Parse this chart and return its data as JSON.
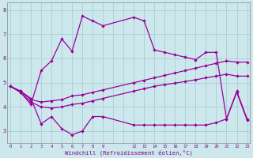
{
  "xlabel": "Windchill (Refroidissement éolien,°C)",
  "background_color": "#cce8ed",
  "grid_color": "#aacdd4",
  "line_color": "#990099",
  "yticks": [
    3,
    4,
    5,
    6,
    7,
    8
  ],
  "xtick_labels": [
    "0",
    "1",
    "2",
    "3",
    "4",
    "5",
    "6",
    "7",
    "8",
    "9",
    "",
    "",
    "12",
    "13",
    "14",
    "15",
    "16",
    "17",
    "18",
    "19",
    "20",
    "21",
    "22",
    "23"
  ],
  "xtick_positions": [
    0,
    1,
    2,
    3,
    4,
    5,
    6,
    7,
    8,
    9,
    10,
    11,
    12,
    13,
    14,
    15,
    16,
    17,
    18,
    19,
    20,
    21,
    22,
    23
  ],
  "ylim": [
    2.5,
    8.3
  ],
  "xlim": [
    -0.3,
    23.3
  ],
  "s1_x": [
    0,
    1,
    2,
    3,
    4,
    5,
    6,
    7,
    8,
    9,
    12,
    13,
    14,
    15,
    16,
    17,
    18,
    19,
    20,
    21,
    22,
    23
  ],
  "s1_y": [
    4.85,
    4.65,
    4.35,
    3.3,
    3.6,
    3.1,
    2.85,
    3.0,
    3.6,
    3.6,
    3.25,
    3.25,
    3.25,
    3.25,
    3.25,
    3.25,
    3.25,
    3.25,
    3.35,
    3.5,
    4.65,
    3.5
  ],
  "s2_x": [
    0,
    1,
    2,
    3,
    4,
    5,
    6,
    7,
    8,
    9,
    12,
    13,
    14,
    15,
    16,
    17,
    18,
    19,
    20,
    21,
    22,
    23
  ],
  "s2_y": [
    4.85,
    4.65,
    4.3,
    4.2,
    4.25,
    4.3,
    4.45,
    4.5,
    4.6,
    4.7,
    5.0,
    5.1,
    5.2,
    5.3,
    5.4,
    5.5,
    5.6,
    5.7,
    5.8,
    5.9,
    5.85,
    5.85
  ],
  "s3_x": [
    0,
    1,
    2,
    3,
    4,
    5,
    6,
    7,
    8,
    9,
    12,
    13,
    14,
    15,
    16,
    17,
    18,
    19,
    20,
    21,
    22,
    23
  ],
  "s3_y": [
    4.85,
    4.6,
    4.2,
    4.0,
    3.95,
    4.0,
    4.1,
    4.15,
    4.25,
    4.35,
    4.65,
    4.75,
    4.85,
    4.92,
    4.98,
    5.05,
    5.12,
    5.2,
    5.27,
    5.35,
    5.27,
    5.27
  ],
  "s4_x": [
    0,
    1,
    2,
    3,
    4,
    5,
    6,
    7,
    8,
    9,
    12,
    13,
    14,
    15,
    16,
    17,
    18,
    19,
    20,
    21,
    22,
    23
  ],
  "s4_y": [
    4.85,
    4.6,
    4.1,
    5.5,
    5.9,
    6.8,
    6.3,
    7.75,
    7.55,
    7.35,
    7.7,
    7.55,
    6.35,
    6.25,
    6.15,
    6.05,
    5.95,
    6.25,
    6.25,
    3.5,
    4.6,
    3.45
  ]
}
